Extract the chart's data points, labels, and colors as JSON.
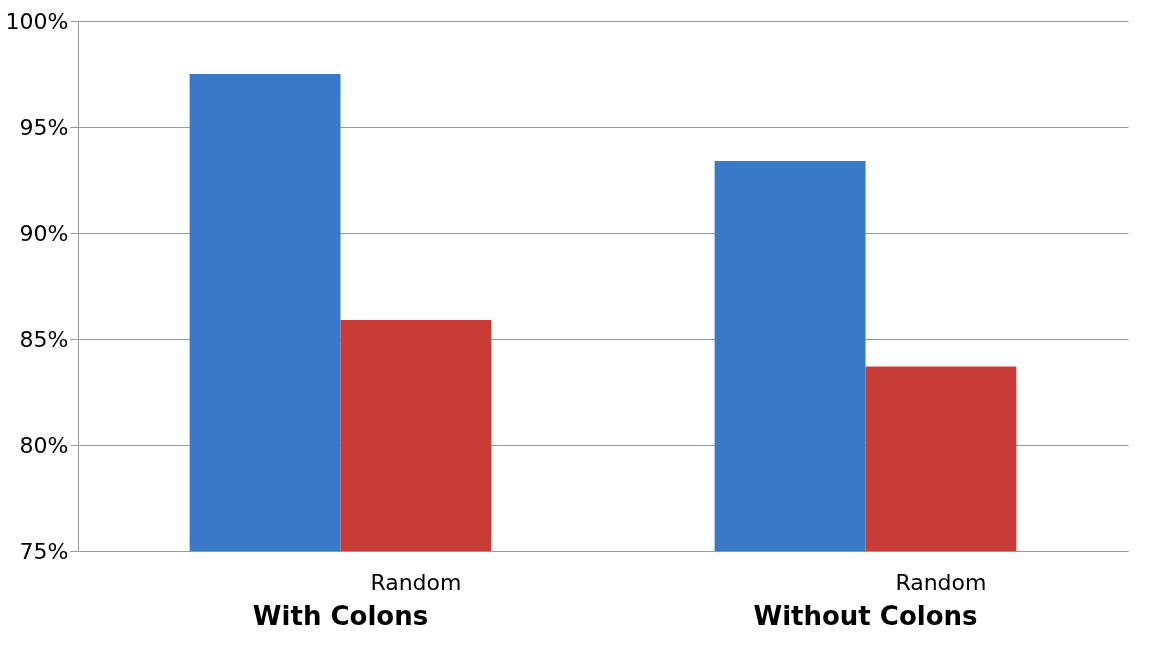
{
  "chart_data": {
    "type": "bar",
    "categories": [
      "With Colons",
      "Without Colons"
    ],
    "series": [
      {
        "color": "#3a78c8",
        "values": [
          97.5,
          93.4
        ]
      },
      {
        "name": "Random",
        "color": "#c83c38",
        "values": [
          85.9,
          83.7
        ]
      }
    ],
    "ylim": [
      75,
      100
    ],
    "yticks": [
      {
        "value": 75,
        "label": "75%"
      },
      {
        "value": 80,
        "label": "80%"
      },
      {
        "value": 85,
        "label": "85%"
      },
      {
        "value": 90,
        "label": "90%"
      },
      {
        "value": 95,
        "label": "95%"
      },
      {
        "value": 100,
        "label": "100%"
      }
    ],
    "grid": "y"
  }
}
